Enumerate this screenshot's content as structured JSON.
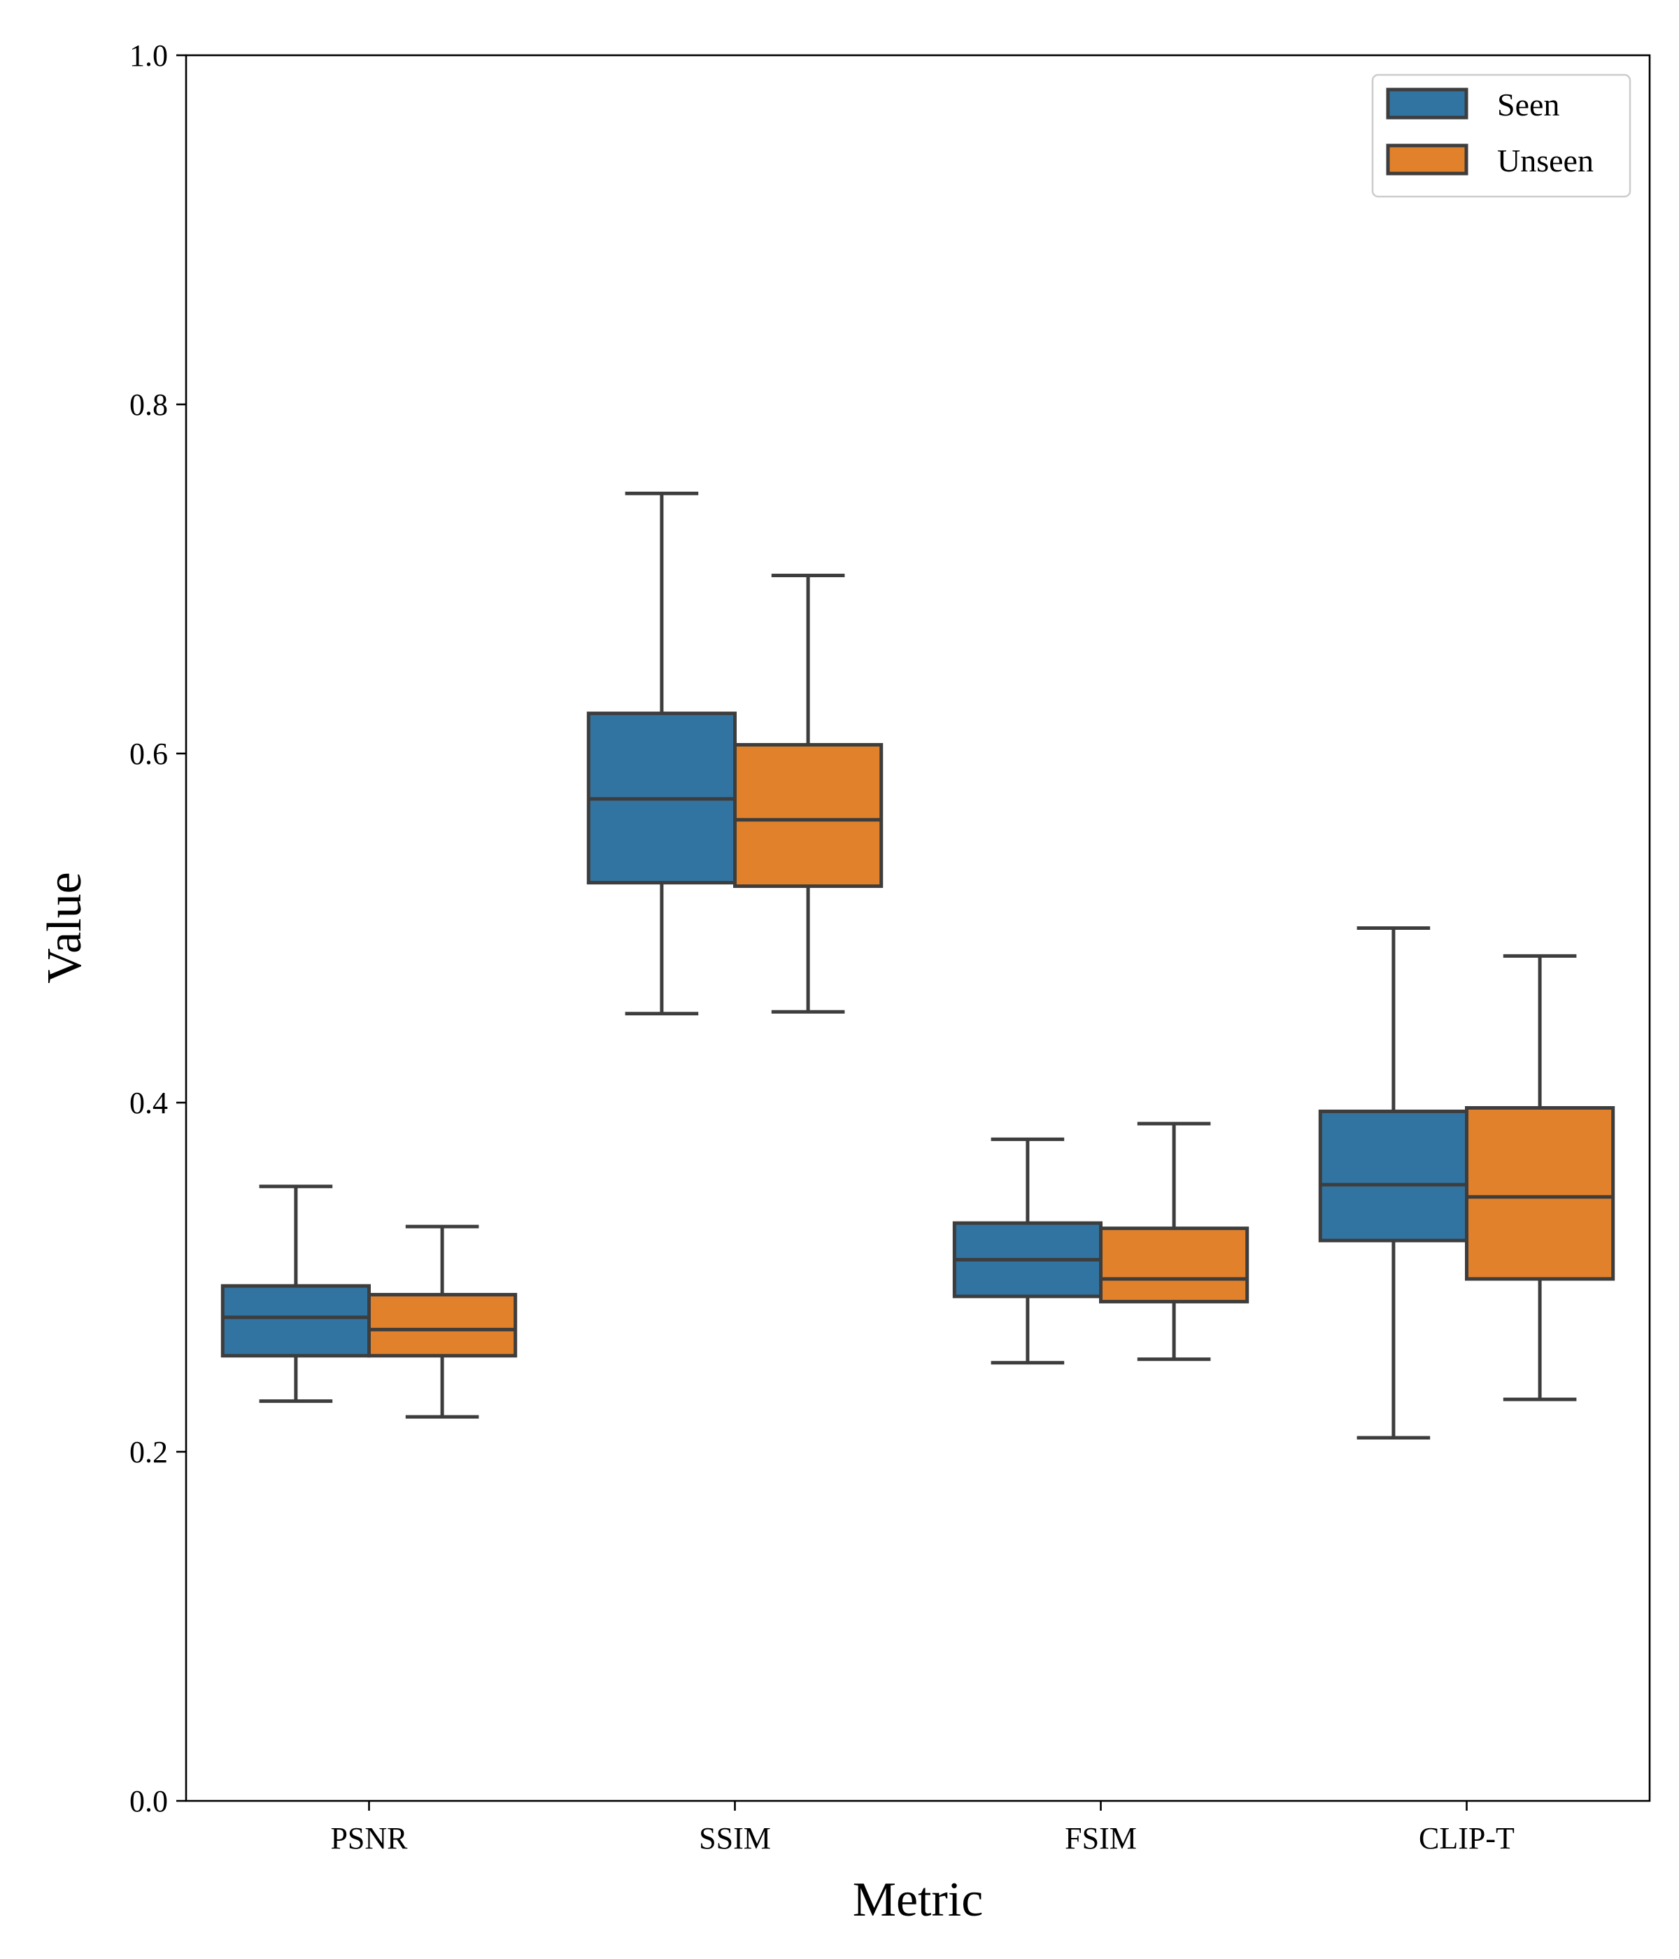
{
  "chart_data": {
    "type": "box",
    "xlabel": "Metric",
    "ylabel": "Value",
    "ylim": [
      0.0,
      1.0
    ],
    "yticks": [
      0.0,
      0.2,
      0.4,
      0.6,
      0.8,
      1.0
    ],
    "ytick_labels": [
      "0.0",
      "0.2",
      "0.4",
      "0.6",
      "0.8",
      "1.0"
    ],
    "categories": [
      "PSNR",
      "SSIM",
      "FSIM",
      "CLIP-T"
    ],
    "legend_position": "top-right",
    "series": [
      {
        "name": "Seen",
        "color": "#3274a1",
        "boxes": [
          {
            "whislo": 0.229,
            "q1": 0.255,
            "med": 0.277,
            "q3": 0.295,
            "whishi": 0.352
          },
          {
            "whislo": 0.451,
            "q1": 0.526,
            "med": 0.574,
            "q3": 0.623,
            "whishi": 0.749
          },
          {
            "whislo": 0.251,
            "q1": 0.289,
            "med": 0.31,
            "q3": 0.331,
            "whishi": 0.379
          },
          {
            "whislo": 0.208,
            "q1": 0.321,
            "med": 0.353,
            "q3": 0.395,
            "whishi": 0.5
          }
        ]
      },
      {
        "name": "Unseen",
        "color": "#e1812c",
        "boxes": [
          {
            "whislo": 0.22,
            "q1": 0.255,
            "med": 0.27,
            "q3": 0.29,
            "whishi": 0.329
          },
          {
            "whislo": 0.452,
            "q1": 0.524,
            "med": 0.562,
            "q3": 0.605,
            "whishi": 0.702
          },
          {
            "whislo": 0.253,
            "q1": 0.286,
            "med": 0.299,
            "q3": 0.328,
            "whishi": 0.388
          },
          {
            "whislo": 0.23,
            "q1": 0.299,
            "med": 0.346,
            "q3": 0.397,
            "whishi": 0.484
          }
        ]
      }
    ]
  }
}
